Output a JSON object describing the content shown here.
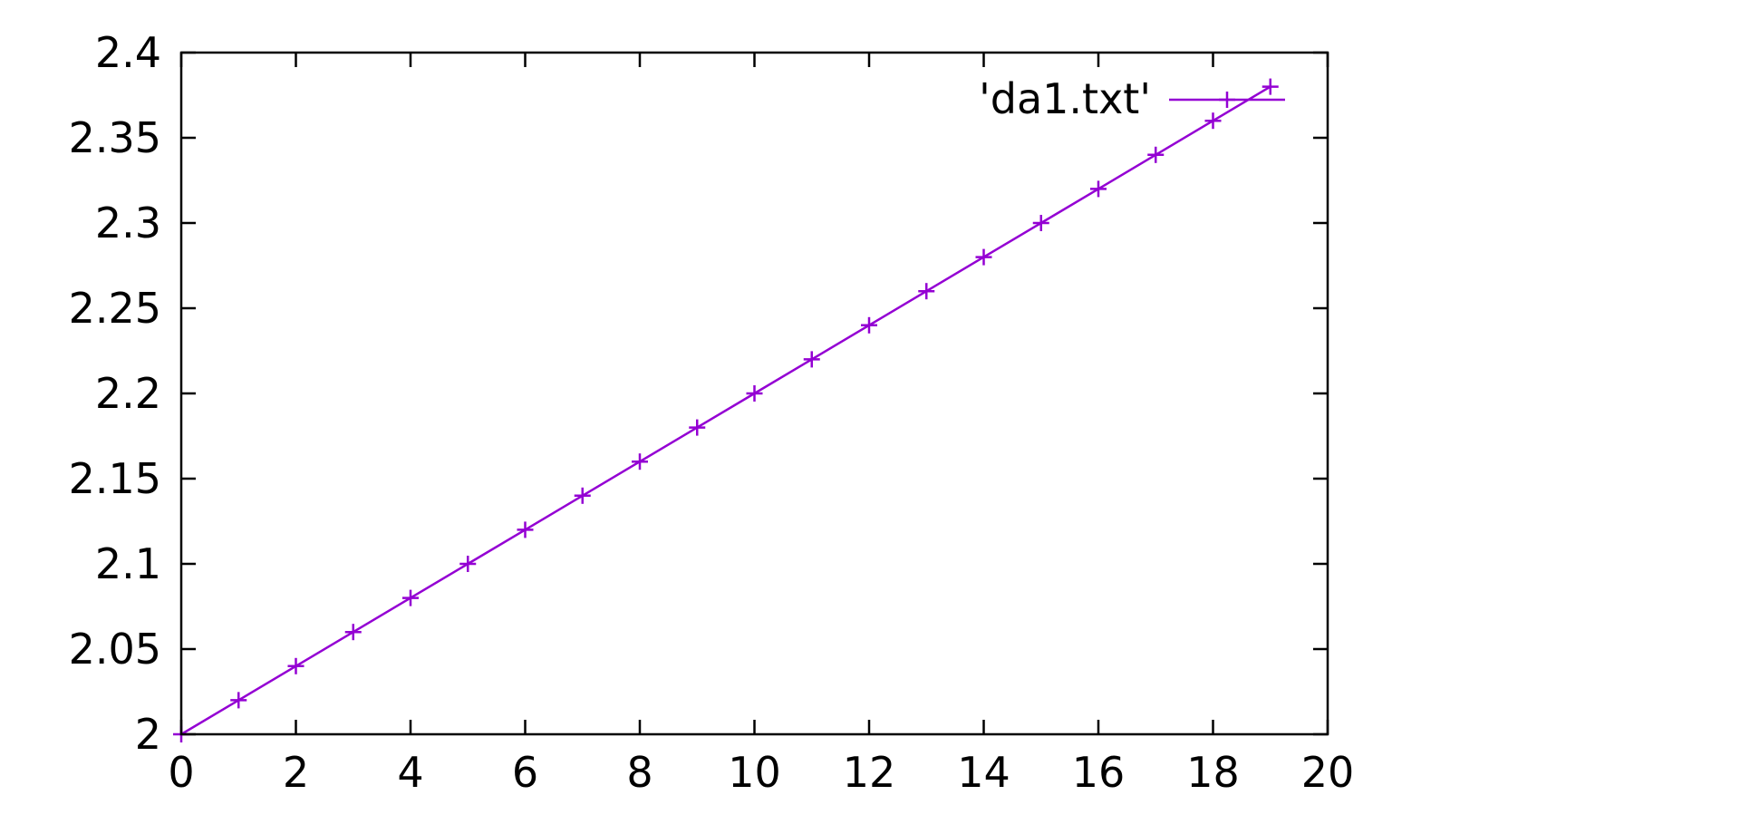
{
  "chart_data": {
    "type": "line",
    "title": "",
    "xlabel": "",
    "ylabel": "",
    "xlim": [
      0,
      20
    ],
    "ylim": [
      2,
      2.4
    ],
    "x_ticks": [
      "0",
      "2",
      "4",
      "6",
      "8",
      "10",
      "12",
      "14",
      "16",
      "18",
      "20"
    ],
    "y_ticks": [
      "2",
      "2.05",
      "2.1",
      "2.15",
      "2.2",
      "2.25",
      "2.3",
      "2.35",
      "2.4"
    ],
    "grid": false,
    "legend_position": "top-right",
    "line_color": "#9400d3",
    "marker": "plus",
    "series": [
      {
        "name": "'da1.txt'",
        "x": [
          0,
          1,
          2,
          3,
          4,
          5,
          6,
          7,
          8,
          9,
          10,
          11,
          12,
          13,
          14,
          15,
          16,
          17,
          18,
          19
        ],
        "y": [
          2.0,
          2.02,
          2.04,
          2.06,
          2.08,
          2.1,
          2.12,
          2.14,
          2.16,
          2.18,
          2.2,
          2.22,
          2.24,
          2.26,
          2.28,
          2.3,
          2.32,
          2.34,
          2.36,
          2.38
        ]
      }
    ]
  }
}
